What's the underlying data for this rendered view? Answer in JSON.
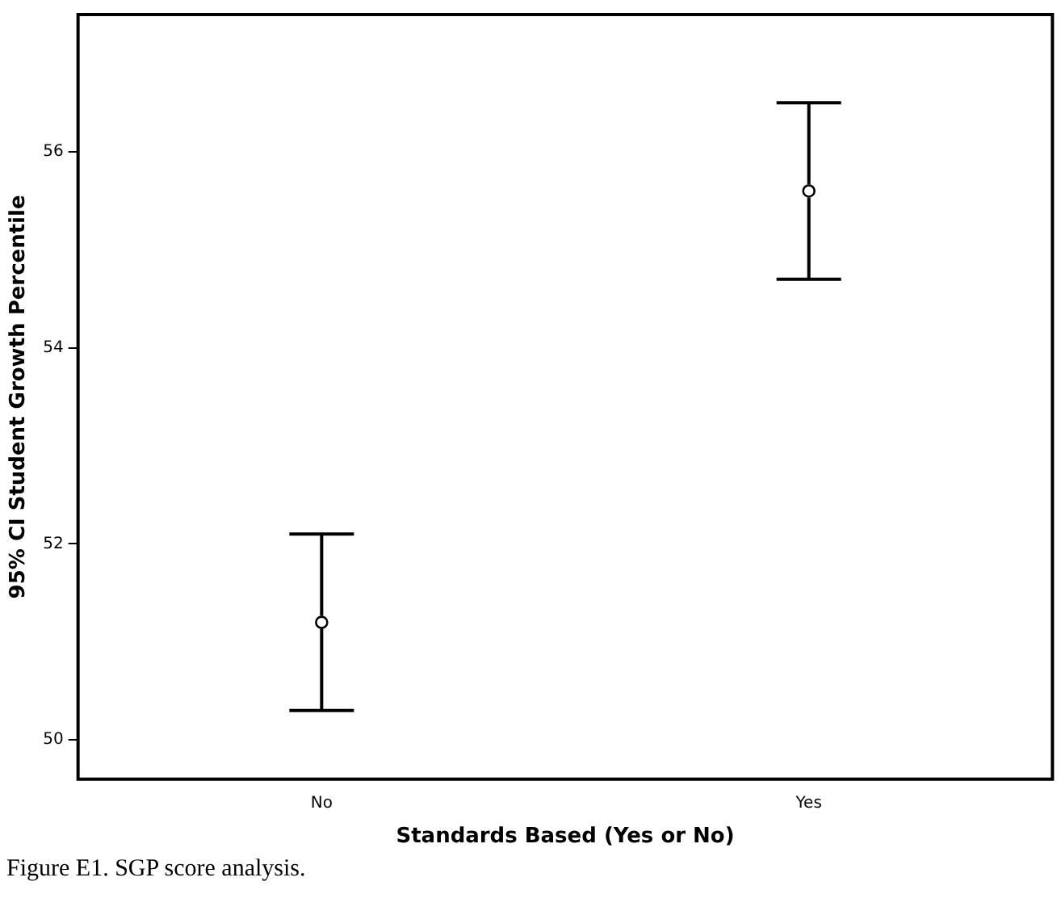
{
  "chart_data": {
    "type": "scatter",
    "xlabel": "Standards Based (Yes or No)",
    "ylabel": "95% CI Student Growth Percentile",
    "categories": [
      "No",
      "Yes"
    ],
    "series": [
      {
        "color": "#000000",
        "values": [
          51.2,
          55.6
        ],
        "errors": [
          [
            50.3,
            52.1
          ],
          [
            54.7,
            56.5
          ]
        ]
      }
    ],
    "ylim": [
      49.6,
      57.4
    ],
    "yticks": [
      50,
      52,
      54,
      56
    ],
    "grid": false,
    "legend": false,
    "marker": "circle",
    "annotations": [
      "Figure E1. SGP score analysis."
    ]
  }
}
